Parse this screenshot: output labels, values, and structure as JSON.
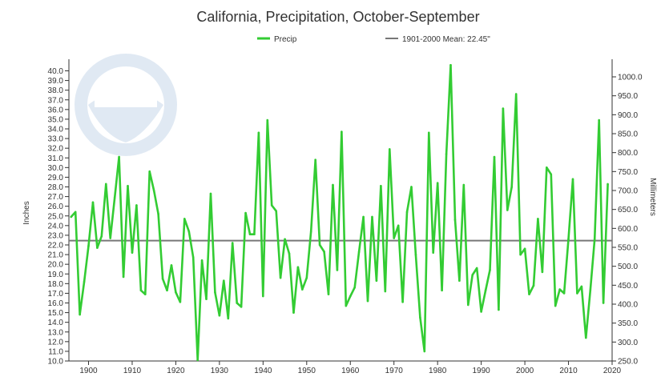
{
  "chart_data": {
    "type": "line",
    "title": "California, Precipitation, October-September",
    "ylabel": "Inches",
    "y2label": "Millimeters",
    "legend": {
      "placement": "top",
      "items": [
        {
          "label": "Precip",
          "color": "#33cc33"
        },
        {
          "label": "1901-2000 Mean: 22.45\"",
          "color": "#777777"
        }
      ]
    },
    "xlim": [
      1895.5,
      2020
    ],
    "ylim": [
      10,
      41.2
    ],
    "y2lim": [
      250,
      1046.5
    ],
    "x_ticks": [
      1900,
      1910,
      1920,
      1930,
      1940,
      1950,
      1960,
      1970,
      1980,
      1990,
      2000,
      2010,
      2020
    ],
    "y_ticks": [
      "10.0",
      "11.0",
      "12.0",
      "13.0",
      "14.0",
      "15.0",
      "16.0",
      "17.0",
      "18.0",
      "19.0",
      "20.0",
      "21.0",
      "22.0",
      "23.0",
      "24.0",
      "25.0",
      "26.0",
      "27.0",
      "28.0",
      "29.0",
      "30.0",
      "31.0",
      "32.0",
      "33.0",
      "34.0",
      "35.0",
      "36.0",
      "37.0",
      "38.0",
      "39.0",
      "40.0"
    ],
    "y2_ticks": [
      "250.0",
      "300.0",
      "350.0",
      "400.0",
      "450.0",
      "500.0",
      "550.0",
      "600.0",
      "650.0",
      "700.0",
      "750.0",
      "800.0",
      "850.0",
      "900.0",
      "950.0",
      "1000.0"
    ],
    "grid": false,
    "mean": 22.45,
    "series": [
      {
        "name": "Precip",
        "color": "#33cc33",
        "x": [
          1896,
          1897,
          1898,
          1899,
          1900,
          1901,
          1902,
          1903,
          1904,
          1905,
          1906,
          1907,
          1908,
          1909,
          1910,
          1911,
          1912,
          1913,
          1914,
          1915,
          1916,
          1917,
          1918,
          1919,
          1920,
          1921,
          1922,
          1923,
          1924,
          1925,
          1926,
          1927,
          1928,
          1929,
          1930,
          1931,
          1932,
          1933,
          1934,
          1935,
          1936,
          1937,
          1938,
          1939,
          1940,
          1941,
          1942,
          1943,
          1944,
          1945,
          1946,
          1947,
          1948,
          1949,
          1950,
          1951,
          1952,
          1953,
          1954,
          1955,
          1956,
          1957,
          1958,
          1959,
          1960,
          1961,
          1962,
          1963,
          1964,
          1965,
          1966,
          1967,
          1968,
          1969,
          1970,
          1971,
          1972,
          1973,
          1974,
          1975,
          1976,
          1977,
          1978,
          1979,
          1980,
          1981,
          1982,
          1983,
          1984,
          1985,
          1986,
          1987,
          1988,
          1989,
          1990,
          1991,
          1992,
          1993,
          1994,
          1995,
          1996,
          1997,
          1998,
          1999,
          2000,
          2001,
          2002,
          2003,
          2004,
          2005,
          2006,
          2007,
          2008,
          2009,
          2010,
          2011,
          2012,
          2013,
          2014,
          2015,
          2016,
          2017,
          2018,
          2019
        ],
        "values": [
          24.9,
          25.4,
          14.8,
          18.2,
          21.9,
          26.4,
          21.7,
          22.9,
          28.3,
          22.7,
          26.9,
          31.1,
          18.7,
          28.1,
          21.2,
          26.1,
          17.3,
          16.9,
          29.6,
          27.6,
          25.2,
          18.5,
          17.3,
          19.9,
          17.1,
          16.1,
          24.7,
          23.4,
          20.7,
          10.1,
          20.4,
          16.4,
          27.3,
          17.1,
          14.7,
          18.3,
          14.4,
          22.2,
          16.0,
          15.6,
          25.3,
          23.1,
          23.1,
          33.6,
          16.7,
          34.9,
          26.1,
          25.5,
          18.6,
          22.6,
          21.1,
          15.0,
          19.7,
          17.4,
          18.6,
          23.4,
          30.8,
          22.0,
          21.3,
          16.9,
          28.2,
          19.4,
          33.7,
          15.7,
          16.7,
          17.6,
          21.3,
          24.9,
          16.2,
          24.9,
          18.3,
          28.1,
          17.2,
          31.9,
          22.7,
          24.0,
          16.1,
          25.4,
          28.0,
          21.0,
          14.5,
          11.0,
          33.6,
          21.2,
          28.4,
          17.3,
          31.4,
          40.6,
          24.6,
          18.3,
          28.2,
          15.8,
          18.9,
          19.6,
          15.1,
          17.3,
          19.4,
          31.1,
          15.3,
          36.1,
          25.6,
          28.0,
          37.6,
          21.0,
          21.6,
          16.9,
          17.8,
          24.7,
          19.2,
          30.0,
          29.3,
          15.7,
          17.4,
          17.0,
          22.6,
          28.8,
          17.0,
          17.7,
          12.4,
          17.3,
          22.6,
          34.9,
          16.0,
          28.3
        ]
      }
    ]
  }
}
